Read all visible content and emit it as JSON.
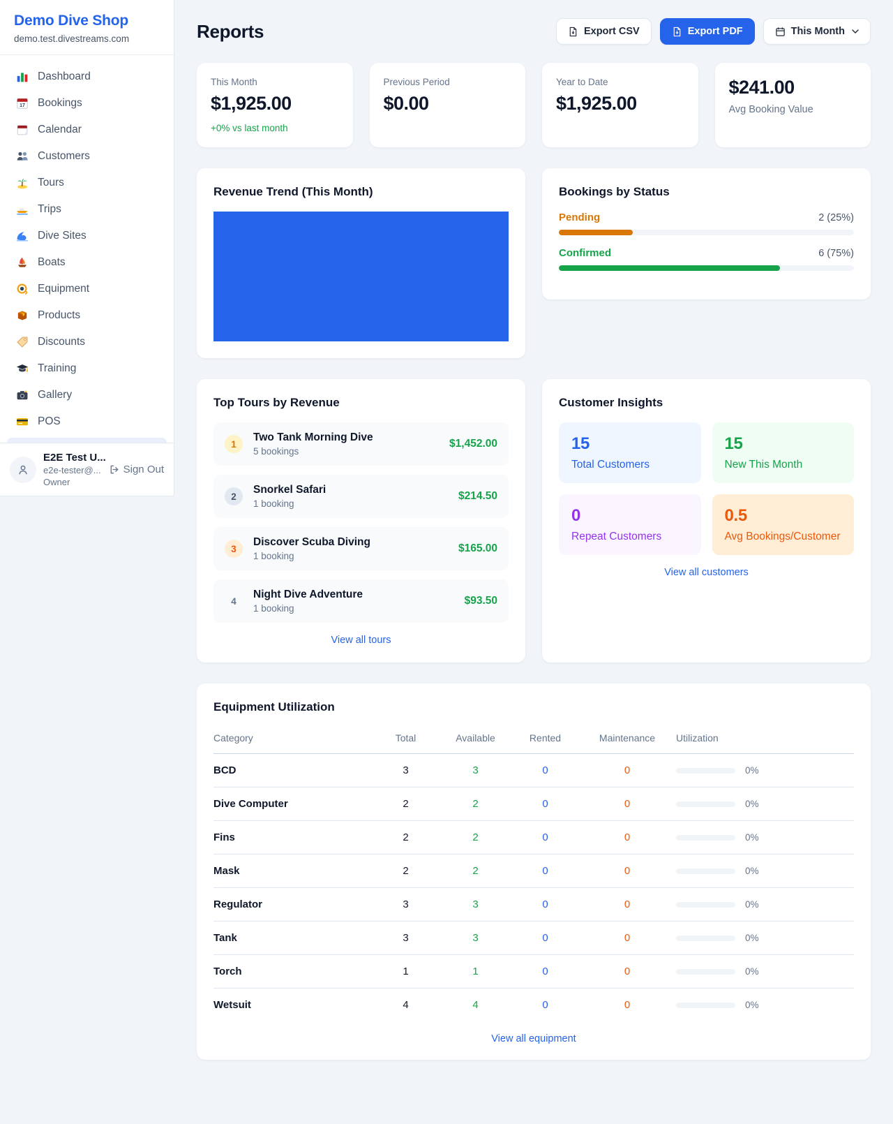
{
  "brand": {
    "name": "Demo Dive Shop",
    "domain": "demo.test.divestreams.com"
  },
  "sidebar": {
    "items": [
      {
        "id": "dashboard",
        "label": "Dashboard",
        "icon": "bar-chart-icon"
      },
      {
        "id": "bookings",
        "label": "Bookings",
        "icon": "calendar-date-icon"
      },
      {
        "id": "calendar",
        "label": "Calendar",
        "icon": "tear-calendar-icon"
      },
      {
        "id": "customers",
        "label": "Customers",
        "icon": "people-icon"
      },
      {
        "id": "tours",
        "label": "Tours",
        "icon": "palm-island-icon"
      },
      {
        "id": "trips",
        "label": "Trips",
        "icon": "speedboat-icon"
      },
      {
        "id": "dive-sites",
        "label": "Dive Sites",
        "icon": "wave-icon"
      },
      {
        "id": "boats",
        "label": "Boats",
        "icon": "sailboat-icon"
      },
      {
        "id": "equipment",
        "label": "Equipment",
        "icon": "dive-mask-icon"
      },
      {
        "id": "products",
        "label": "Products",
        "icon": "package-icon"
      },
      {
        "id": "discounts",
        "label": "Discounts",
        "icon": "tag-icon"
      },
      {
        "id": "training",
        "label": "Training",
        "icon": "grad-cap-icon"
      },
      {
        "id": "gallery",
        "label": "Gallery",
        "icon": "camera-icon"
      },
      {
        "id": "pos",
        "label": "POS",
        "icon": "credit-card-icon"
      }
    ]
  },
  "user": {
    "name": "E2E Test U...",
    "email": "e2e-tester@...",
    "role": "Owner",
    "sign_out_label": "Sign Out"
  },
  "header": {
    "title": "Reports",
    "export_csv_label": "Export CSV",
    "export_pdf_label": "Export PDF",
    "period_label": "This Month"
  },
  "stats": [
    {
      "label": "This Month",
      "value": "$1,925.00",
      "delta": "+0% vs last month",
      "value_first": false
    },
    {
      "label": "Previous Period",
      "value": "$0.00",
      "delta": "",
      "value_first": false
    },
    {
      "label": "Year to Date",
      "value": "$1,925.00",
      "delta": "",
      "value_first": false
    },
    {
      "label": "Avg Booking Value",
      "value": "$241.00",
      "delta": "",
      "value_first": true
    }
  ],
  "revenue_trend": {
    "title": "Revenue Trend (This Month)",
    "bar_color": "#2563eb"
  },
  "bookings_by_status": {
    "title": "Bookings by Status",
    "rows": [
      {
        "label": "Pending",
        "value_text": "2 (25%)",
        "pct": 25,
        "color": "#d97706"
      },
      {
        "label": "Confirmed",
        "value_text": "6 (75%)",
        "pct": 75,
        "color": "#16a34a"
      }
    ]
  },
  "top_tours": {
    "title": "Top Tours by Revenue",
    "view_all_label": "View all tours",
    "items": [
      {
        "rank": "1",
        "name": "Two Tank Morning Dive",
        "bookings": "5 bookings",
        "revenue": "$1,452.00",
        "badge_bg": "#fef3c7",
        "badge_color": "#d97706"
      },
      {
        "rank": "2",
        "name": "Snorkel Safari",
        "bookings": "1 booking",
        "revenue": "$214.50",
        "badge_bg": "#e2e8f0",
        "badge_color": "#475569"
      },
      {
        "rank": "3",
        "name": "Discover Scuba Diving",
        "bookings": "1 booking",
        "revenue": "$165.00",
        "badge_bg": "#ffedd5",
        "badge_color": "#ea580c"
      },
      {
        "rank": "4",
        "name": "Night Dive Adventure",
        "bookings": "1 booking",
        "revenue": "$93.50",
        "badge_bg": "transparent",
        "badge_color": "#64748b"
      }
    ]
  },
  "customer_insights": {
    "title": "Customer Insights",
    "view_all_label": "View all customers",
    "tiles": [
      {
        "id": "total-customers",
        "value": "15",
        "label": "Total Customers",
        "color": "#2563eb",
        "bg": "#eff6ff"
      },
      {
        "id": "new-this-month",
        "value": "15",
        "label": "New This Month",
        "color": "#16a34a",
        "bg": "#f0fdf4"
      },
      {
        "id": "repeat-customers",
        "value": "0",
        "label": "Repeat Customers",
        "color": "#9333ea",
        "bg": "#faf5ff"
      },
      {
        "id": "avg-bookings-customer",
        "value": "0.5",
        "label": "Avg Bookings/Customer",
        "color": "#ea580c",
        "bg": "#ffedd5"
      }
    ]
  },
  "equipment": {
    "title": "Equipment Utilization",
    "view_all_label": "View all equipment",
    "columns": [
      "Category",
      "Total",
      "Available",
      "Rented",
      "Maintenance",
      "Utilization"
    ],
    "rows": [
      {
        "category": "BCD",
        "total": "3",
        "available": "3",
        "rented": "0",
        "maintenance": "0",
        "utilization": "0%",
        "utilization_pct": 0
      },
      {
        "category": "Dive Computer",
        "total": "2",
        "available": "2",
        "rented": "0",
        "maintenance": "0",
        "utilization": "0%",
        "utilization_pct": 0
      },
      {
        "category": "Fins",
        "total": "2",
        "available": "2",
        "rented": "0",
        "maintenance": "0",
        "utilization": "0%",
        "utilization_pct": 0
      },
      {
        "category": "Mask",
        "total": "2",
        "available": "2",
        "rented": "0",
        "maintenance": "0",
        "utilization": "0%",
        "utilization_pct": 0
      },
      {
        "category": "Regulator",
        "total": "3",
        "available": "3",
        "rented": "0",
        "maintenance": "0",
        "utilization": "0%",
        "utilization_pct": 0
      },
      {
        "category": "Tank",
        "total": "3",
        "available": "3",
        "rented": "0",
        "maintenance": "0",
        "utilization": "0%",
        "utilization_pct": 0
      },
      {
        "category": "Torch",
        "total": "1",
        "available": "1",
        "rented": "0",
        "maintenance": "0",
        "utilization": "0%",
        "utilization_pct": 0
      },
      {
        "category": "Wetsuit",
        "total": "4",
        "available": "4",
        "rented": "0",
        "maintenance": "0",
        "utilization": "0%",
        "utilization_pct": 0
      }
    ]
  },
  "colors": {
    "accent": "#2563eb",
    "green": "#16a34a",
    "orange": "#ea580c",
    "amber": "#d97706",
    "purple": "#9333ea"
  }
}
